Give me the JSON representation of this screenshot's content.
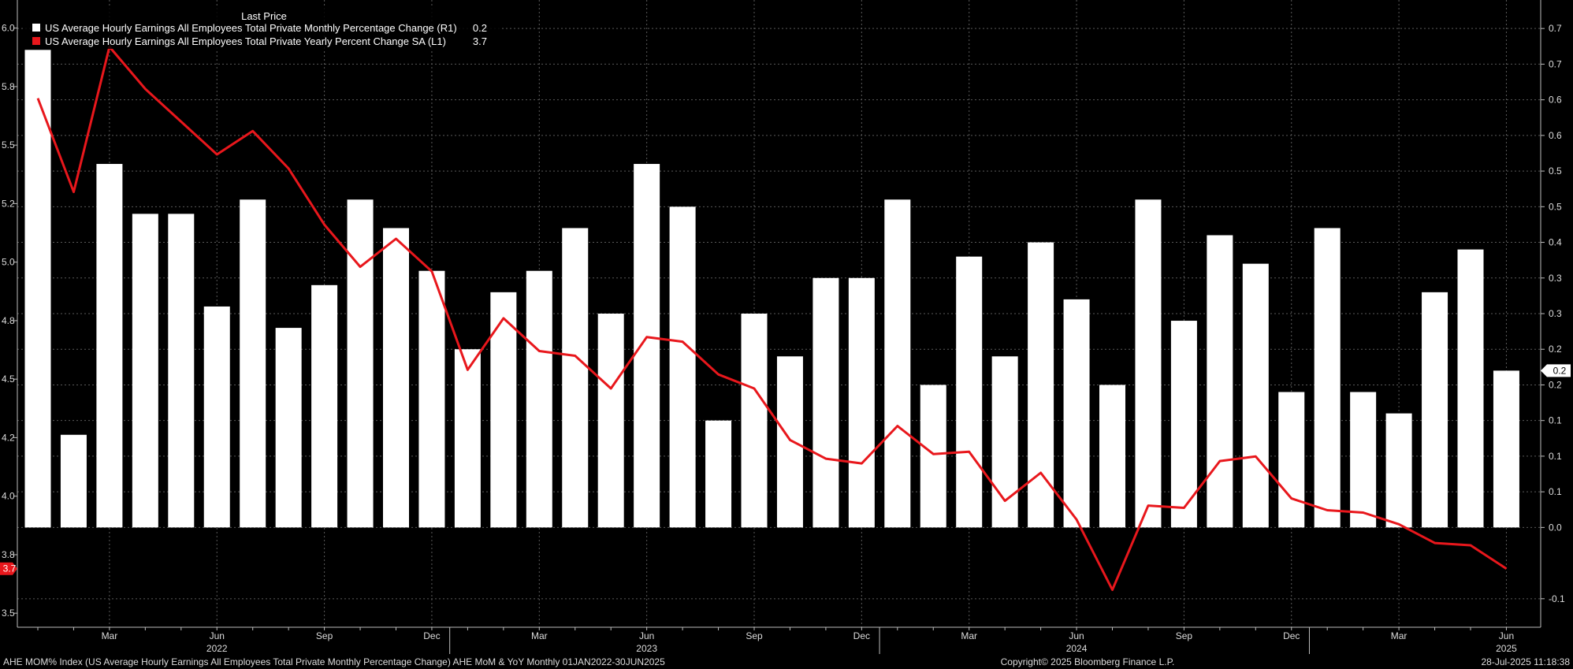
{
  "chart_data": {
    "type": "bar",
    "legend": {
      "header": "Last Price",
      "placement": "top-left",
      "entries": [
        {
          "label": "US Average Hourly Earnings All Employees Total Private Monthly Percentage Change  (R1)",
          "value": "0.2",
          "color": "#ffffff"
        },
        {
          "label": "US Average Hourly Earnings All Employees Total Private Yearly Percent Change SA  (L1)",
          "value": "3.7",
          "color": "#e8171c"
        }
      ]
    },
    "x_axis": {
      "month_labels": [
        {
          "index": 2,
          "label": "Mar"
        },
        {
          "index": 5,
          "label": "Jun"
        },
        {
          "index": 8,
          "label": "Sep"
        },
        {
          "index": 11,
          "label": "Dec"
        },
        {
          "index": 14,
          "label": "Mar"
        },
        {
          "index": 17,
          "label": "Jun"
        },
        {
          "index": 20,
          "label": "Sep"
        },
        {
          "index": 23,
          "label": "Dec"
        },
        {
          "index": 26,
          "label": "Mar"
        },
        {
          "index": 29,
          "label": "Jun"
        },
        {
          "index": 32,
          "label": "Sep"
        },
        {
          "index": 35,
          "label": "Dec"
        },
        {
          "index": 38,
          "label": "Mar"
        },
        {
          "index": 41,
          "label": "Jun"
        }
      ],
      "year_labels": [
        {
          "index": 5,
          "label": "2022"
        },
        {
          "index": 17,
          "label": "2023"
        },
        {
          "index": 29,
          "label": "2024"
        },
        {
          "index": 41,
          "label": "2025"
        }
      ]
    },
    "y_left": {
      "ticks": [
        {
          "value": 3.5,
          "label": "3.5"
        },
        {
          "value": 3.75,
          "label": "3.8"
        },
        {
          "value": 4.0,
          "label": "4.0"
        },
        {
          "value": 4.25,
          "label": "4.2"
        },
        {
          "value": 4.5,
          "label": "4.5"
        },
        {
          "value": 4.75,
          "label": "4.8"
        },
        {
          "value": 5.0,
          "label": "5.0"
        },
        {
          "value": 5.25,
          "label": "5.2"
        },
        {
          "value": 5.5,
          "label": "5.5"
        },
        {
          "value": 5.75,
          "label": "5.8"
        },
        {
          "value": 6.0,
          "label": "6.0"
        }
      ],
      "range": [
        3.44,
        6.12
      ]
    },
    "y_right": {
      "ticks": [
        {
          "value": -0.1,
          "label": "-0.1"
        },
        {
          "value": 0.0,
          "label": "0.0"
        },
        {
          "value": 0.05,
          "label": "0.1"
        },
        {
          "value": 0.1,
          "label": "0.1"
        },
        {
          "value": 0.15,
          "label": "0.1"
        },
        {
          "value": 0.2,
          "label": "0.2"
        },
        {
          "value": 0.25,
          "label": "0.2"
        },
        {
          "value": 0.3,
          "label": "0.3"
        },
        {
          "value": 0.35,
          "label": "0.3"
        },
        {
          "value": 0.4,
          "label": "0.4"
        },
        {
          "value": 0.45,
          "label": "0.5"
        },
        {
          "value": 0.5,
          "label": "0.5"
        },
        {
          "value": 0.55,
          "label": "0.6"
        },
        {
          "value": 0.6,
          "label": "0.6"
        },
        {
          "value": 0.65,
          "label": "0.7"
        },
        {
          "value": 0.7,
          "label": "0.7"
        }
      ],
      "range": [
        -0.14,
        0.74
      ]
    },
    "series": [
      {
        "name": "US Average Hourly Earnings All Employees Total Private Monthly Percentage Change",
        "type": "bar",
        "axis": "right",
        "color": "#ffffff",
        "values": [
          0.67,
          0.13,
          0.51,
          0.44,
          0.44,
          0.31,
          0.46,
          0.28,
          0.34,
          0.46,
          0.42,
          0.36,
          0.25,
          0.33,
          0.36,
          0.42,
          0.3,
          0.51,
          0.45,
          0.15,
          0.3,
          0.24,
          0.35,
          0.35,
          0.46,
          0.2,
          0.38,
          0.24,
          0.4,
          0.32,
          0.2,
          0.46,
          0.29,
          0.41,
          0.37,
          0.19,
          0.42,
          0.19,
          0.16,
          0.33,
          0.39,
          0.22
        ],
        "last_value_label": "0.2"
      },
      {
        "name": "US Average Hourly Earnings All Employees Total Private Yearly Percent Change SA",
        "type": "line",
        "axis": "left",
        "color": "#e8171c",
        "values": [
          5.7,
          5.3,
          5.92,
          5.74,
          5.6,
          5.46,
          5.56,
          5.4,
          5.16,
          4.98,
          5.1,
          4.96,
          4.54,
          4.76,
          4.62,
          4.6,
          4.46,
          4.68,
          4.66,
          4.52,
          4.46,
          4.24,
          4.16,
          4.14,
          4.3,
          4.18,
          4.19,
          3.98,
          4.1,
          3.9,
          3.6,
          3.96,
          3.95,
          4.15,
          4.17,
          3.99,
          3.94,
          3.93,
          3.88,
          3.8,
          3.79,
          3.69
        ],
        "last_value_label": "3.7"
      }
    ]
  },
  "footer": {
    "left": "AHE MOM% Index (US Average Hourly Earnings All Employees Total Private Monthly Percentage Change) AHE MoM & YoY  Monthly 01JAN2022-30JUN2025",
    "center": "Copyright© 2025 Bloomberg Finance L.P.",
    "right": "28-Jul-2025 11:18:38"
  }
}
